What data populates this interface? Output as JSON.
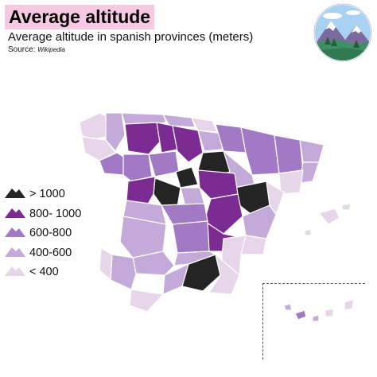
{
  "header": {
    "title": "Average altitude",
    "subtitle": "Average altitude in spanish provinces (meters)",
    "source_label": "Source:",
    "source_name": "Wikipedia"
  },
  "legend": {
    "items": [
      {
        "label": "> 1000",
        "color": "#242424"
      },
      {
        "label": "800- 1000",
        "color": "#7b2b92"
      },
      {
        "label": "600-800",
        "color": "#a179c4"
      },
      {
        "label": "400-600",
        "color": "#c4aad8"
      },
      {
        "label": "< 400",
        "color": "#e7d6ea"
      }
    ]
  },
  "badge": {
    "icon": "mountain-landscape-icon"
  }
}
